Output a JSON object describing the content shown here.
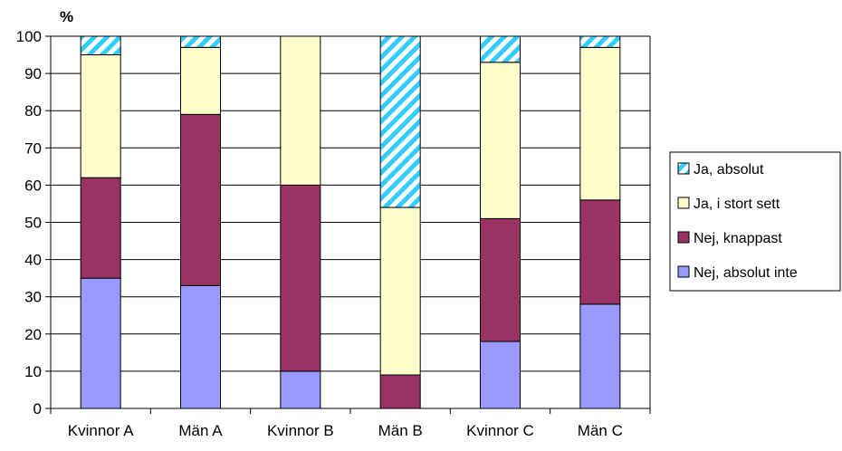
{
  "chart_data": {
    "type": "bar",
    "stacked": true,
    "ylabel": "%",
    "ylim": [
      0,
      100
    ],
    "yticks": [
      0,
      10,
      20,
      30,
      40,
      50,
      60,
      70,
      80,
      90,
      100
    ],
    "grid": true,
    "legend_position": "right",
    "categories": [
      "Kvinnor A",
      "Män A",
      "Kvinnor B",
      "Män B",
      "Kvinnor C",
      "Män C"
    ],
    "series": [
      {
        "name": "Nej, absolut inte",
        "values": [
          35,
          33,
          10,
          0,
          18,
          28
        ],
        "color": "#9999ff",
        "pattern": "solid"
      },
      {
        "name": "Nej, knappast",
        "values": [
          27,
          46,
          50,
          9,
          33,
          28
        ],
        "color": "#993366",
        "pattern": "solid"
      },
      {
        "name": "Ja, i stort sett",
        "values": [
          33,
          18,
          40,
          45,
          42,
          41
        ],
        "color": "#ffffcc",
        "pattern": "solid"
      },
      {
        "name": "Ja, absolut",
        "values": [
          5,
          3,
          0,
          46,
          7,
          3
        ],
        "color": "#33ccff",
        "pattern": "diagonal-stripes"
      }
    ],
    "legend_order": [
      "Ja, absolut",
      "Ja, i stort sett",
      "Nej, knappast",
      "Nej, absolut inte"
    ]
  }
}
